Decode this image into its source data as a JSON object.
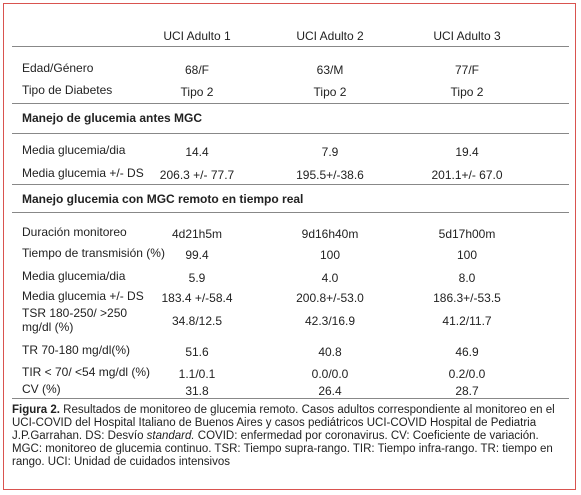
{
  "header": {
    "columns": [
      "UCI Adulto 1",
      "UCI Adulto 2",
      "UCI Adulto 3"
    ]
  },
  "sections": [
    {
      "rows": [
        {
          "label": "Edad/Género",
          "cells": [
            "68/F",
            "63/M",
            "77/F"
          ]
        },
        {
          "label": "Tipo de Diabetes",
          "cells": [
            "Tipo 2",
            "Tipo 2",
            "Tipo 2"
          ]
        }
      ]
    },
    {
      "title": "Manejo de glucemia antes MGC",
      "rows": [
        {
          "label": "Media glucemia/dia",
          "cells": [
            "14.4",
            "7.9",
            "19.4"
          ]
        },
        {
          "label": "Media glucemia +/- DS",
          "cells": [
            "206.3 +/- 77.7",
            "195.5+/-38.6",
            "201.1+/- 67.0"
          ]
        }
      ]
    },
    {
      "title": "Manejo glucemia con MGC remoto en tiempo real",
      "rows": [
        {
          "label": "Duración monitoreo",
          "cells": [
            "4d21h5m",
            "9d16h40m",
            "5d17h00m"
          ]
        },
        {
          "label": "Tiempo de transmisión (%)",
          "cells": [
            "99.4",
            "100",
            "100"
          ]
        },
        {
          "label": "Media glucemia/dia",
          "cells": [
            "5.9",
            "4.0",
            "8.0"
          ]
        },
        {
          "label": "Media glucemia +/- DS",
          "cells": [
            "183.4 +/-58.4",
            "200.8+/-53.0",
            "186.3+/-53.5"
          ]
        },
        {
          "label": "TSR 180-250/ >250 mg/dl (%)",
          "cells": [
            "34.8/12.5",
            "42.3/16.9",
            "41.2/11.7"
          ]
        },
        {
          "label": "TR 70-180 mg/dl(%)",
          "cells": [
            "51.6",
            "40.8",
            "46.9"
          ]
        },
        {
          "label": "TIR < 70/ <54 mg/dl (%)",
          "cells": [
            "1.1/0.1",
            "0.0/0.0",
            "0.2/0.0"
          ]
        },
        {
          "label": "CV (%)",
          "cells": [
            "31.8",
            "26.4",
            "28.7"
          ]
        }
      ]
    }
  ],
  "caption": {
    "label": "Figura 2.",
    "text": " Resultados de monitoreo de glucemia remoto. Casos adultos correspondiente al monitoreo en el UCI-COVID del Hospital Italiano de Buenos Aires y casos pediátricos UCI-COVID Hospital de Pediatria J.P.Garrahan. DS: Desvío ",
    "italic": "standard.",
    "text2": " COVID: enfermedad por coronavirus. CV: Coeficiente de variación. MGC:  monitoreo de glucemia continuo. TSR: Tiempo supra-rango. TIR: Tiempo infra-rango. TR: tiempo en rango. UCI: Unidad de cuidados intensivos"
  }
}
